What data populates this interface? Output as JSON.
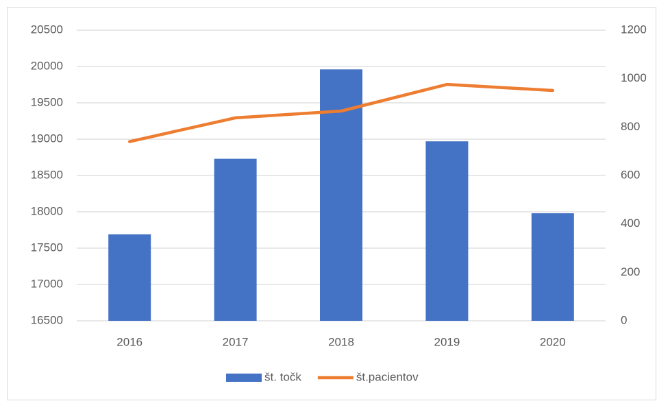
{
  "chart_data": {
    "type": "bar",
    "categories": [
      "2016",
      "2017",
      "2018",
      "2019",
      "2020"
    ],
    "series": [
      {
        "name": "št. točk",
        "type": "bar",
        "color": "#4472c4",
        "values": [
          17690,
          18730,
          19960,
          18970,
          17980
        ]
      },
      {
        "name": "št.pacientov",
        "type": "line",
        "axis": "y2",
        "color": "#ed7d31",
        "values": [
          740,
          838,
          866,
          976,
          951
        ]
      }
    ],
    "ylim": [
      16500,
      20500
    ],
    "yticks": [
      16500,
      17000,
      17500,
      18000,
      18500,
      19000,
      19500,
      20000,
      20500
    ],
    "y2lim": [
      0,
      1200
    ],
    "y2ticks": [
      0,
      200,
      400,
      600,
      800,
      1000,
      1200
    ],
    "grid": true,
    "legend": "bottom"
  }
}
